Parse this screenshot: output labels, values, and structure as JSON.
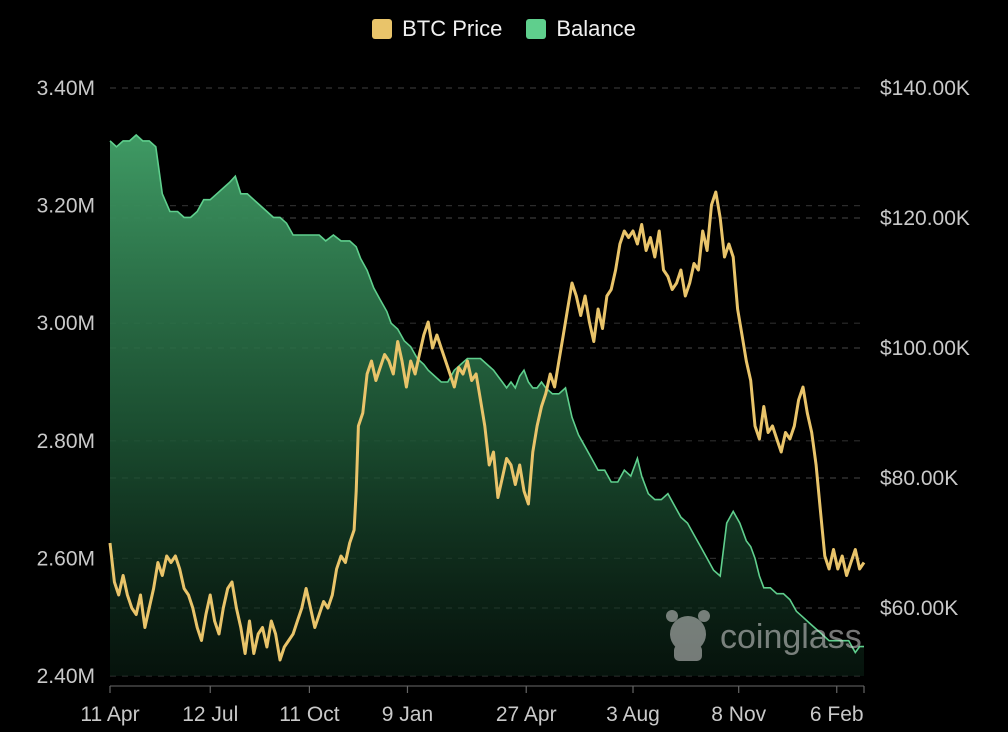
{
  "chart_data": {
    "type": "area+line",
    "legend": [
      {
        "name": "BTC Price",
        "color": "#e9c46a"
      },
      {
        "name": "Balance",
        "color": "#5fcf8d"
      }
    ],
    "left_axis": {
      "ticks": [
        "3.40M",
        "3.20M",
        "3.00M",
        "2.80M",
        "2.60M",
        "2.40M"
      ],
      "tick_values": [
        3.4,
        3.2,
        3.0,
        2.8,
        2.6,
        2.4
      ],
      "range_millions": [
        2.4,
        3.4
      ]
    },
    "right_axis": {
      "ticks": [
        "$140.00K",
        "$120.00K",
        "$100.00K",
        "$80.00K",
        "$60.00K"
      ],
      "tick_values": [
        140,
        120,
        100,
        80,
        60
      ],
      "range_thousands_usd": [
        50,
        140
      ]
    },
    "x_axis": {
      "ticks": [
        "11 Apr",
        "12 Jul",
        "11 Oct",
        "9 Jan",
        "27 Apr",
        "3 Aug",
        "8 Nov",
        "6 Feb"
      ],
      "tick_days": [
        0,
        92,
        183,
        273,
        382,
        480,
        577,
        667
      ],
      "range_days": [
        0,
        692
      ]
    },
    "grid": "horizontal dashed",
    "legend_position": "top-center",
    "watermark": "coinglass",
    "series": [
      {
        "name": "Balance",
        "unit": "M",
        "points": [
          [
            0,
            3.31
          ],
          [
            6,
            3.3
          ],
          [
            12,
            3.31
          ],
          [
            18,
            3.31
          ],
          [
            24,
            3.32
          ],
          [
            30,
            3.31
          ],
          [
            36,
            3.31
          ],
          [
            42,
            3.3
          ],
          [
            48,
            3.22
          ],
          [
            55,
            3.19
          ],
          [
            62,
            3.19
          ],
          [
            68,
            3.18
          ],
          [
            74,
            3.18
          ],
          [
            80,
            3.19
          ],
          [
            86,
            3.21
          ],
          [
            92,
            3.21
          ],
          [
            98,
            3.22
          ],
          [
            104,
            3.23
          ],
          [
            110,
            3.24
          ],
          [
            115,
            3.25
          ],
          [
            120,
            3.22
          ],
          [
            126,
            3.22
          ],
          [
            132,
            3.21
          ],
          [
            138,
            3.2
          ],
          [
            144,
            3.19
          ],
          [
            150,
            3.18
          ],
          [
            156,
            3.18
          ],
          [
            162,
            3.17
          ],
          [
            168,
            3.15
          ],
          [
            174,
            3.15
          ],
          [
            180,
            3.15
          ],
          [
            186,
            3.15
          ],
          [
            192,
            3.15
          ],
          [
            198,
            3.14
          ],
          [
            205,
            3.15
          ],
          [
            212,
            3.14
          ],
          [
            220,
            3.14
          ],
          [
            226,
            3.13
          ],
          [
            230,
            3.11
          ],
          [
            236,
            3.09
          ],
          [
            242,
            3.06
          ],
          [
            248,
            3.04
          ],
          [
            254,
            3.02
          ],
          [
            258,
            3.0
          ],
          [
            264,
            2.99
          ],
          [
            270,
            2.97
          ],
          [
            276,
            2.96
          ],
          [
            282,
            2.94
          ],
          [
            288,
            2.93
          ],
          [
            292,
            2.92
          ],
          [
            298,
            2.91
          ],
          [
            304,
            2.9
          ],
          [
            310,
            2.9
          ],
          [
            316,
            2.92
          ],
          [
            322,
            2.93
          ],
          [
            328,
            2.94
          ],
          [
            334,
            2.94
          ],
          [
            340,
            2.94
          ],
          [
            346,
            2.93
          ],
          [
            352,
            2.92
          ],
          [
            356,
            2.91
          ],
          [
            360,
            2.9
          ],
          [
            364,
            2.89
          ],
          [
            368,
            2.9
          ],
          [
            372,
            2.89
          ],
          [
            376,
            2.91
          ],
          [
            380,
            2.92
          ],
          [
            384,
            2.9
          ],
          [
            388,
            2.89
          ],
          [
            392,
            2.89
          ],
          [
            396,
            2.9
          ],
          [
            400,
            2.89
          ],
          [
            406,
            2.88
          ],
          [
            412,
            2.88
          ],
          [
            418,
            2.89
          ],
          [
            424,
            2.84
          ],
          [
            430,
            2.81
          ],
          [
            436,
            2.79
          ],
          [
            442,
            2.77
          ],
          [
            448,
            2.75
          ],
          [
            454,
            2.75
          ],
          [
            460,
            2.73
          ],
          [
            466,
            2.73
          ],
          [
            472,
            2.75
          ],
          [
            478,
            2.74
          ],
          [
            484,
            2.77
          ],
          [
            488,
            2.74
          ],
          [
            494,
            2.71
          ],
          [
            500,
            2.7
          ],
          [
            506,
            2.7
          ],
          [
            512,
            2.71
          ],
          [
            518,
            2.69
          ],
          [
            524,
            2.67
          ],
          [
            530,
            2.66
          ],
          [
            536,
            2.64
          ],
          [
            542,
            2.62
          ],
          [
            548,
            2.6
          ],
          [
            554,
            2.58
          ],
          [
            560,
            2.57
          ],
          [
            566,
            2.66
          ],
          [
            572,
            2.68
          ],
          [
            578,
            2.66
          ],
          [
            584,
            2.63
          ],
          [
            588,
            2.62
          ],
          [
            592,
            2.6
          ],
          [
            596,
            2.57
          ],
          [
            600,
            2.55
          ],
          [
            606,
            2.55
          ],
          [
            612,
            2.54
          ],
          [
            618,
            2.54
          ],
          [
            624,
            2.53
          ],
          [
            630,
            2.51
          ],
          [
            636,
            2.5
          ],
          [
            642,
            2.49
          ],
          [
            648,
            2.48
          ],
          [
            654,
            2.47
          ],
          [
            660,
            2.46
          ],
          [
            666,
            2.46
          ],
          [
            672,
            2.46
          ],
          [
            678,
            2.46
          ],
          [
            684,
            2.44
          ],
          [
            688,
            2.45
          ],
          [
            692,
            2.45
          ]
        ]
      },
      {
        "name": "BTC Price",
        "unit": "K USD",
        "points": [
          [
            0,
            70
          ],
          [
            4,
            64
          ],
          [
            8,
            62
          ],
          [
            12,
            65
          ],
          [
            16,
            62
          ],
          [
            20,
            60
          ],
          [
            24,
            59
          ],
          [
            28,
            62
          ],
          [
            32,
            57
          ],
          [
            36,
            60
          ],
          [
            40,
            63
          ],
          [
            44,
            67
          ],
          [
            48,
            65
          ],
          [
            52,
            68
          ],
          [
            56,
            67
          ],
          [
            60,
            68
          ],
          [
            64,
            66
          ],
          [
            68,
            63
          ],
          [
            72,
            62
          ],
          [
            76,
            60
          ],
          [
            80,
            57
          ],
          [
            84,
            55
          ],
          [
            88,
            59
          ],
          [
            92,
            62
          ],
          [
            96,
            58
          ],
          [
            100,
            56
          ],
          [
            104,
            60
          ],
          [
            108,
            63
          ],
          [
            112,
            64
          ],
          [
            116,
            60
          ],
          [
            120,
            57
          ],
          [
            124,
            53
          ],
          [
            128,
            58
          ],
          [
            132,
            53
          ],
          [
            136,
            56
          ],
          [
            140,
            57
          ],
          [
            144,
            54
          ],
          [
            148,
            58
          ],
          [
            152,
            56
          ],
          [
            156,
            52
          ],
          [
            160,
            54
          ],
          [
            164,
            55
          ],
          [
            168,
            56
          ],
          [
            172,
            58
          ],
          [
            176,
            60
          ],
          [
            180,
            63
          ],
          [
            184,
            60
          ],
          [
            188,
            57
          ],
          [
            192,
            59
          ],
          [
            196,
            61
          ],
          [
            200,
            60
          ],
          [
            204,
            62
          ],
          [
            208,
            66
          ],
          [
            212,
            68
          ],
          [
            216,
            67
          ],
          [
            220,
            70
          ],
          [
            224,
            72
          ],
          [
            226,
            78
          ],
          [
            228,
            88
          ],
          [
            232,
            90
          ],
          [
            236,
            96
          ],
          [
            240,
            98
          ],
          [
            244,
            95
          ],
          [
            248,
            97
          ],
          [
            252,
            99
          ],
          [
            256,
            98
          ],
          [
            260,
            96
          ],
          [
            264,
            101
          ],
          [
            268,
            98
          ],
          [
            272,
            94
          ],
          [
            276,
            98
          ],
          [
            280,
            96
          ],
          [
            284,
            99
          ],
          [
            288,
            102
          ],
          [
            292,
            104
          ],
          [
            296,
            100
          ],
          [
            300,
            102
          ],
          [
            304,
            100
          ],
          [
            308,
            98
          ],
          [
            312,
            96
          ],
          [
            316,
            94
          ],
          [
            320,
            97
          ],
          [
            324,
            96
          ],
          [
            328,
            98
          ],
          [
            332,
            95
          ],
          [
            336,
            96
          ],
          [
            340,
            92
          ],
          [
            344,
            88
          ],
          [
            348,
            82
          ],
          [
            352,
            84
          ],
          [
            356,
            77
          ],
          [
            360,
            80
          ],
          [
            364,
            83
          ],
          [
            368,
            82
          ],
          [
            372,
            79
          ],
          [
            376,
            82
          ],
          [
            380,
            78
          ],
          [
            384,
            76
          ],
          [
            388,
            84
          ],
          [
            392,
            88
          ],
          [
            396,
            91
          ],
          [
            400,
            93
          ],
          [
            404,
            96
          ],
          [
            408,
            94
          ],
          [
            412,
            98
          ],
          [
            416,
            102
          ],
          [
            420,
            106
          ],
          [
            424,
            110
          ],
          [
            428,
            108
          ],
          [
            432,
            105
          ],
          [
            436,
            108
          ],
          [
            440,
            104
          ],
          [
            444,
            101
          ],
          [
            448,
            106
          ],
          [
            452,
            103
          ],
          [
            456,
            108
          ],
          [
            460,
            109
          ],
          [
            464,
            112
          ],
          [
            468,
            116
          ],
          [
            472,
            118
          ],
          [
            476,
            117
          ],
          [
            480,
            118
          ],
          [
            484,
            116
          ],
          [
            488,
            119
          ],
          [
            492,
            115
          ],
          [
            496,
            117
          ],
          [
            500,
            114
          ],
          [
            504,
            118
          ],
          [
            508,
            112
          ],
          [
            512,
            111
          ],
          [
            516,
            109
          ],
          [
            520,
            110
          ],
          [
            524,
            112
          ],
          [
            528,
            108
          ],
          [
            532,
            110
          ],
          [
            536,
            113
          ],
          [
            540,
            112
          ],
          [
            544,
            118
          ],
          [
            548,
            115
          ],
          [
            552,
            122
          ],
          [
            556,
            124
          ],
          [
            560,
            120
          ],
          [
            564,
            114
          ],
          [
            568,
            116
          ],
          [
            572,
            114
          ],
          [
            576,
            106
          ],
          [
            580,
            102
          ],
          [
            584,
            98
          ],
          [
            588,
            95
          ],
          [
            592,
            88
          ],
          [
            596,
            86
          ],
          [
            600,
            91
          ],
          [
            604,
            87
          ],
          [
            608,
            88
          ],
          [
            612,
            86
          ],
          [
            616,
            84
          ],
          [
            620,
            87
          ],
          [
            624,
            86
          ],
          [
            628,
            88
          ],
          [
            632,
            92
          ],
          [
            636,
            94
          ],
          [
            640,
            90
          ],
          [
            644,
            87
          ],
          [
            648,
            82
          ],
          [
            652,
            75
          ],
          [
            656,
            68
          ],
          [
            660,
            66
          ],
          [
            664,
            69
          ],
          [
            668,
            66
          ],
          [
            672,
            68
          ],
          [
            676,
            65
          ],
          [
            680,
            67
          ],
          [
            684,
            69
          ],
          [
            688,
            66
          ],
          [
            692,
            67
          ]
        ]
      }
    ]
  }
}
